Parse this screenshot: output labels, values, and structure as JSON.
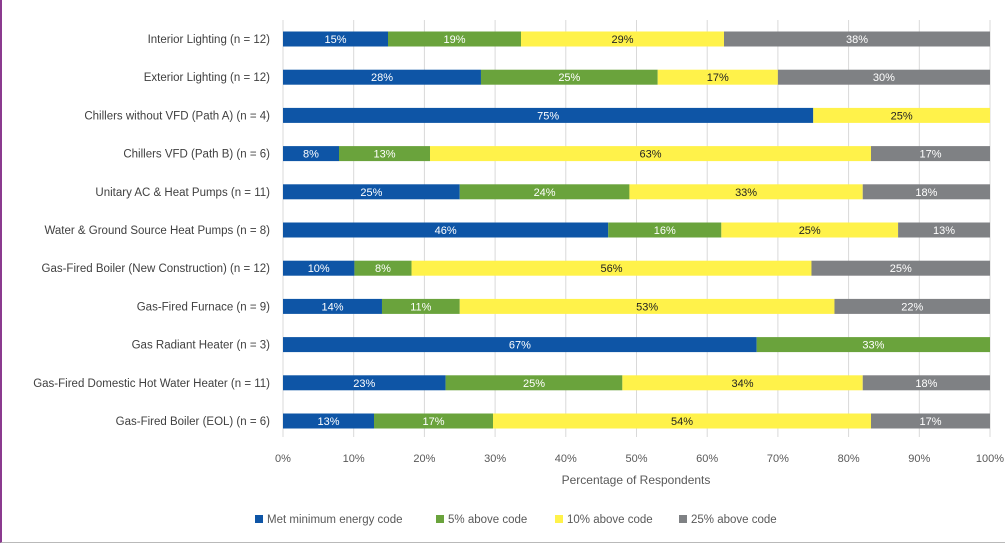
{
  "chart_data": {
    "type": "bar",
    "orientation": "horizontal",
    "stacked": true,
    "title": "",
    "xlabel": "Percentage of Respondents",
    "ylabel": "",
    "xlim": [
      0,
      100
    ],
    "x_ticks": [
      "0%",
      "10%",
      "20%",
      "30%",
      "40%",
      "50%",
      "60%",
      "70%",
      "80%",
      "90%",
      "100%"
    ],
    "grid": true,
    "legend_position": "bottom",
    "categories": [
      "Interior Lighting (n = 12)",
      "Exterior Lighting (n = 12)",
      "Chillers without VFD (Path A) (n = 4)",
      "Chillers VFD (Path B) (n = 6)",
      "Unitary AC & Heat Pumps (n = 11)",
      "Water & Ground Source Heat Pumps (n = 8)",
      "Gas-Fired Boiler (New Construction) (n = 12)",
      "Gas-Fired Furnace (n = 9)",
      "Gas Radiant Heater (n = 3)",
      "Gas-Fired Domestic Hot Water Heater (n = 11)",
      "Gas-Fired Boiler (EOL) (n = 6)"
    ],
    "series": [
      {
        "name": "Met minimum energy code",
        "color": "#0e55a6",
        "label_color": "#ffffff",
        "values": [
          15,
          28,
          75,
          8,
          25,
          46,
          10,
          14,
          67,
          23,
          13
        ],
        "labels": [
          "15%",
          "28%",
          "75%",
          "8%",
          "25%",
          "46%",
          "10%",
          "14%",
          "67%",
          "23%",
          "13%"
        ]
      },
      {
        "name": "5% above code",
        "color": "#6aa33c",
        "label_color": "#ffffff",
        "values": [
          19,
          25,
          0,
          13,
          24,
          16,
          8,
          11,
          33,
          25,
          17
        ],
        "labels": [
          "19%",
          "25%",
          "",
          "13%",
          "24%",
          "16%",
          "8%",
          "11%",
          "33%",
          "25%",
          "17%"
        ]
      },
      {
        "name": "10% above code",
        "color": "#fff24a",
        "label_color": "#222222",
        "values": [
          29,
          17,
          25,
          63,
          33,
          25,
          56,
          53,
          0,
          34,
          54
        ],
        "labels": [
          "29%",
          "17%",
          "25%",
          "63%",
          "33%",
          "25%",
          "56%",
          "53%",
          "",
          "34%",
          "54%"
        ]
      },
      {
        "name": "25% above code",
        "color": "#7f8184",
        "label_color": "#ffffff",
        "values": [
          38,
          30,
          0,
          17,
          18,
          13,
          25,
          22,
          0,
          18,
          17
        ],
        "labels": [
          "38%",
          "30%",
          "",
          "17%",
          "18%",
          "13%",
          "25%",
          "22%",
          "",
          "18%",
          "17%"
        ]
      }
    ]
  }
}
